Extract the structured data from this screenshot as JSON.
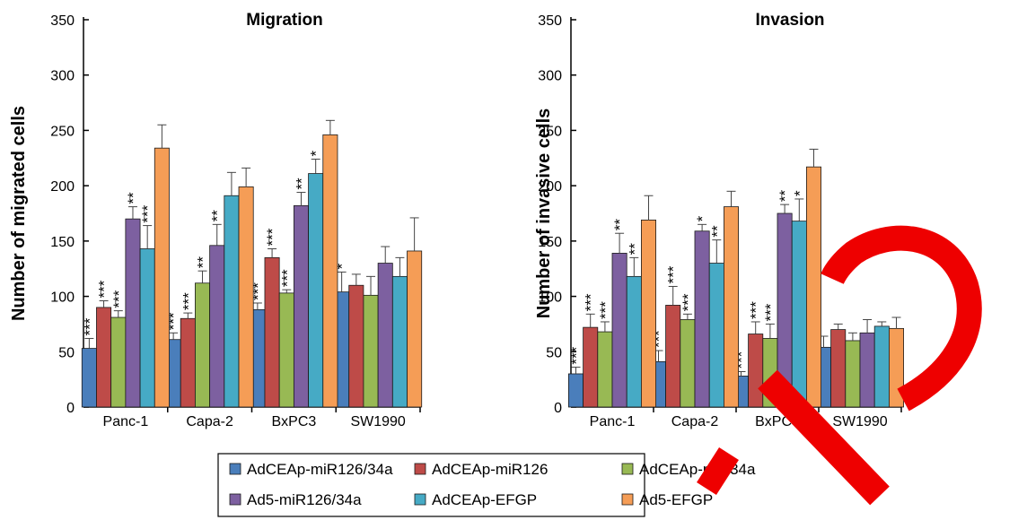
{
  "chart_data": [
    {
      "type": "bar",
      "title": "Migration",
      "ylabel": "Number of migrated cells",
      "ylim": [
        0,
        350
      ],
      "yticks": [
        0,
        50,
        100,
        150,
        200,
        250,
        300,
        350
      ],
      "categories": [
        "Panc-1",
        "Capa-2",
        "BxPC3",
        "SW1990"
      ],
      "series": [
        {
          "name": "AdCEAp-miR126/34a",
          "values": [
            53,
            61,
            88,
            104
          ],
          "errors": [
            9,
            6,
            6,
            18
          ],
          "marks": [
            "***",
            "***",
            "***",
            "*"
          ]
        },
        {
          "name": "AdCEAp-miR126",
          "values": [
            90,
            80,
            135,
            110
          ],
          "errors": [
            6,
            5,
            8,
            10
          ],
          "marks": [
            "***",
            "***",
            "***",
            ""
          ]
        },
        {
          "name": "AdCEAp-miR34a",
          "values": [
            81,
            112,
            103,
            101
          ],
          "errors": [
            6,
            11,
            3,
            17
          ],
          "marks": [
            "***",
            "**",
            "***",
            ""
          ]
        },
        {
          "name": "Ad5-miR126/34a",
          "values": [
            170,
            146,
            182,
            130
          ],
          "errors": [
            11,
            19,
            12,
            15
          ],
          "marks": [
            "**",
            "**",
            "**",
            ""
          ]
        },
        {
          "name": "AdCEAp-EFGP",
          "values": [
            143,
            191,
            211,
            118
          ],
          "errors": [
            21,
            21,
            13,
            17
          ],
          "marks": [
            "***",
            "",
            "*",
            ""
          ]
        },
        {
          "name": "Ad5-EFGP",
          "values": [
            234,
            199,
            246,
            141
          ],
          "errors": [
            21,
            17,
            13,
            30
          ],
          "marks": [
            "",
            "",
            "",
            ""
          ]
        }
      ]
    },
    {
      "type": "bar",
      "title": "Invasion",
      "ylabel": "Number of invasive cells",
      "ylim": [
        0,
        350
      ],
      "yticks": [
        0,
        50,
        100,
        150,
        200,
        250,
        300,
        350
      ],
      "categories": [
        "Panc-1",
        "Capa-2",
        "BxPC3",
        "SW1990"
      ],
      "series": [
        {
          "name": "AdCEAp-miR126/34a",
          "values": [
            30,
            41,
            28,
            54
          ],
          "errors": [
            6,
            10,
            4,
            10
          ],
          "marks": [
            "***",
            "***",
            "***",
            ""
          ]
        },
        {
          "name": "AdCEAp-miR126",
          "values": [
            72,
            92,
            66,
            70
          ],
          "errors": [
            12,
            17,
            11,
            5
          ],
          "marks": [
            "***",
            "***",
            "***",
            ""
          ]
        },
        {
          "name": "AdCEAp-miR34a",
          "values": [
            68,
            79,
            62,
            60
          ],
          "errors": [
            9,
            5,
            13,
            7
          ],
          "marks": [
            "***",
            "***",
            "***",
            ""
          ]
        },
        {
          "name": "Ad5-miR126/34a",
          "values": [
            139,
            159,
            175,
            67
          ],
          "errors": [
            18,
            6,
            8,
            12
          ],
          "marks": [
            "**",
            "*",
            "**",
            ""
          ]
        },
        {
          "name": "AdCEAp-EFGP",
          "values": [
            118,
            130,
            168,
            73
          ],
          "errors": [
            17,
            21,
            20,
            4
          ],
          "marks": [
            "**",
            "**",
            "*",
            ""
          ]
        },
        {
          "name": "Ad5-EFGP",
          "values": [
            169,
            181,
            217,
            71
          ],
          "errors": [
            22,
            14,
            16,
            10
          ],
          "marks": [
            "",
            "",
            "",
            ""
          ]
        }
      ]
    }
  ],
  "legend": {
    "placement": "bottom-center",
    "items": [
      {
        "label": "AdCEAp-miR126/34a",
        "color": "#4a7ebb"
      },
      {
        "label": "AdCEAp-miR126",
        "color": "#be4b48"
      },
      {
        "label": "AdCEAp-miR34a",
        "color": "#98b954"
      },
      {
        "label": "Ad5-miR126/34a",
        "color": "#7d60a0"
      },
      {
        "label": "AdCEAp-EFGP",
        "color": "#46aac5"
      },
      {
        "label": "Ad5-EFGP",
        "color": "#f59d56"
      }
    ]
  },
  "overlay": {
    "shape": "red-letter-D",
    "color": "#ee0000"
  }
}
